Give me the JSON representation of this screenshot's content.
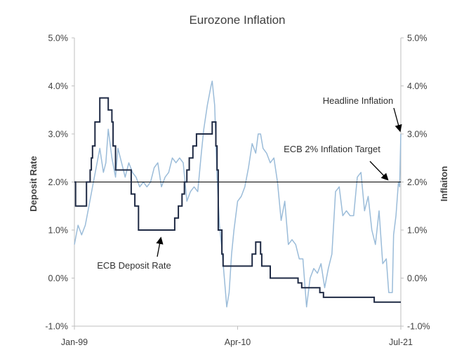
{
  "chart_data": {
    "type": "line",
    "title": "Eurozone Inflation",
    "ylabel_left": "Deposit Rate",
    "ylabel_right": "Inflaiton",
    "x_range": [
      "1999-01",
      "2021-07"
    ],
    "x_tick_labels": [
      "Jan-99",
      "Apr-10",
      "Jul-21"
    ],
    "x_tick_dates": [
      "1999-01",
      "2010-04",
      "2021-07"
    ],
    "ylim": [
      -1.0,
      5.0
    ],
    "y_tick_values": [
      -1,
      0,
      1,
      2,
      3,
      4,
      5
    ],
    "y_tick_labels": [
      "-1.0%",
      "0.0%",
      "1.0%",
      "2.0%",
      "3.0%",
      "4.0%",
      "5.0%"
    ],
    "grid": false,
    "reference_line": {
      "value": 2.0,
      "label": "ECB 2% Inflation Target",
      "color": "#000000"
    },
    "annotations": [
      {
        "text": "Headline Inflation",
        "target": "headline_inflation",
        "target_date": "2021-07",
        "target_value": 3.0
      },
      {
        "text": "ECB 2% Inflation Target",
        "target": "target_line",
        "target_date": "2020-10",
        "target_value": 2.0
      },
      {
        "text": "ECB Deposit Rate",
        "target": "deposit_rate",
        "target_date": "2005-01",
        "target_value": 0.9
      }
    ],
    "series": [
      {
        "name": "Headline Inflation",
        "id": "headline_inflation",
        "color": "#9bbcd9",
        "axis": "right",
        "points": [
          [
            "1999-01",
            0.7
          ],
          [
            "1999-04",
            1.1
          ],
          [
            "1999-07",
            0.9
          ],
          [
            "1999-10",
            1.1
          ],
          [
            "2000-01",
            1.5
          ],
          [
            "2000-04",
            1.9
          ],
          [
            "2000-07",
            2.3
          ],
          [
            "2000-10",
            2.7
          ],
          [
            "2001-01",
            2.2
          ],
          [
            "2001-03",
            2.4
          ],
          [
            "2001-05",
            3.1
          ],
          [
            "2001-08",
            2.5
          ],
          [
            "2001-11",
            2.1
          ],
          [
            "2002-01",
            2.7
          ],
          [
            "2002-04",
            2.4
          ],
          [
            "2002-07",
            2.1
          ],
          [
            "2002-10",
            2.4
          ],
          [
            "2003-01",
            2.2
          ],
          [
            "2003-04",
            2.1
          ],
          [
            "2003-07",
            1.9
          ],
          [
            "2003-10",
            2.0
          ],
          [
            "2004-01",
            1.9
          ],
          [
            "2004-04",
            2.0
          ],
          [
            "2004-07",
            2.3
          ],
          [
            "2004-10",
            2.4
          ],
          [
            "2005-01",
            1.9
          ],
          [
            "2005-04",
            2.1
          ],
          [
            "2005-07",
            2.2
          ],
          [
            "2005-10",
            2.5
          ],
          [
            "2006-01",
            2.4
          ],
          [
            "2006-04",
            2.5
          ],
          [
            "2006-07",
            2.4
          ],
          [
            "2006-10",
            1.6
          ],
          [
            "2007-01",
            1.8
          ],
          [
            "2007-04",
            1.9
          ],
          [
            "2007-07",
            1.8
          ],
          [
            "2007-10",
            2.6
          ],
          [
            "2007-12",
            3.1
          ],
          [
            "2008-03",
            3.6
          ],
          [
            "2008-06",
            4.0
          ],
          [
            "2008-07",
            4.1
          ],
          [
            "2008-09",
            3.6
          ],
          [
            "2008-11",
            2.1
          ],
          [
            "2009-01",
            1.1
          ],
          [
            "2009-03",
            0.6
          ],
          [
            "2009-05",
            0.0
          ],
          [
            "2009-07",
            -0.6
          ],
          [
            "2009-09",
            -0.3
          ],
          [
            "2009-11",
            0.5
          ],
          [
            "2010-01",
            1.0
          ],
          [
            "2010-04",
            1.6
          ],
          [
            "2010-07",
            1.7
          ],
          [
            "2010-10",
            1.9
          ],
          [
            "2011-01",
            2.3
          ],
          [
            "2011-04",
            2.8
          ],
          [
            "2011-07",
            2.6
          ],
          [
            "2011-09",
            3.0
          ],
          [
            "2011-11",
            3.0
          ],
          [
            "2012-01",
            2.7
          ],
          [
            "2012-04",
            2.6
          ],
          [
            "2012-07",
            2.4
          ],
          [
            "2012-10",
            2.5
          ],
          [
            "2013-01",
            2.0
          ],
          [
            "2013-04",
            1.2
          ],
          [
            "2013-07",
            1.6
          ],
          [
            "2013-10",
            0.7
          ],
          [
            "2014-01",
            0.8
          ],
          [
            "2014-04",
            0.7
          ],
          [
            "2014-07",
            0.4
          ],
          [
            "2014-10",
            0.4
          ],
          [
            "2015-01",
            -0.6
          ],
          [
            "2015-04",
            0.0
          ],
          [
            "2015-07",
            0.2
          ],
          [
            "2015-10",
            0.1
          ],
          [
            "2016-01",
            0.3
          ],
          [
            "2016-04",
            -0.2
          ],
          [
            "2016-07",
            0.2
          ],
          [
            "2016-10",
            0.5
          ],
          [
            "2017-01",
            1.8
          ],
          [
            "2017-04",
            1.9
          ],
          [
            "2017-07",
            1.3
          ],
          [
            "2017-10",
            1.4
          ],
          [
            "2018-01",
            1.3
          ],
          [
            "2018-04",
            1.3
          ],
          [
            "2018-07",
            2.1
          ],
          [
            "2018-10",
            2.2
          ],
          [
            "2019-01",
            1.4
          ],
          [
            "2019-04",
            1.7
          ],
          [
            "2019-07",
            1.0
          ],
          [
            "2019-10",
            0.7
          ],
          [
            "2020-01",
            1.4
          ],
          [
            "2020-04",
            0.3
          ],
          [
            "2020-07",
            0.4
          ],
          [
            "2020-09",
            -0.3
          ],
          [
            "2020-12",
            -0.3
          ],
          [
            "2021-01",
            0.9
          ],
          [
            "2021-03",
            1.3
          ],
          [
            "2021-05",
            2.0
          ],
          [
            "2021-06",
            1.9
          ],
          [
            "2021-07",
            3.0
          ]
        ]
      },
      {
        "name": "ECB Deposit Rate",
        "id": "deposit_rate",
        "color": "#1f2a44",
        "axis": "left",
        "step": true,
        "points": [
          [
            "1999-01",
            2.0
          ],
          [
            "1999-02",
            1.5
          ],
          [
            "1999-11",
            2.0
          ],
          [
            "2000-02",
            2.25
          ],
          [
            "2000-03",
            2.5
          ],
          [
            "2000-04",
            2.75
          ],
          [
            "2000-06",
            3.25
          ],
          [
            "2000-10",
            3.75
          ],
          [
            "2001-05",
            3.5
          ],
          [
            "2001-08",
            3.25
          ],
          [
            "2001-09",
            2.75
          ],
          [
            "2001-11",
            2.25
          ],
          [
            "2002-12",
            1.75
          ],
          [
            "2003-03",
            1.5
          ],
          [
            "2003-06",
            1.0
          ],
          [
            "2005-12",
            1.25
          ],
          [
            "2006-03",
            1.5
          ],
          [
            "2006-06",
            1.75
          ],
          [
            "2006-08",
            2.0
          ],
          [
            "2006-10",
            2.25
          ],
          [
            "2006-12",
            2.5
          ],
          [
            "2007-03",
            2.75
          ],
          [
            "2007-06",
            3.0
          ],
          [
            "2008-07",
            3.25
          ],
          [
            "2008-10",
            2.75
          ],
          [
            "2008-11",
            2.25
          ],
          [
            "2008-12",
            1.0
          ],
          [
            "2009-01",
            1.0
          ],
          [
            "2009-03",
            0.5
          ],
          [
            "2009-04",
            0.25
          ],
          [
            "2011-04",
            0.5
          ],
          [
            "2011-07",
            0.75
          ],
          [
            "2011-11",
            0.5
          ],
          [
            "2011-12",
            0.25
          ],
          [
            "2012-07",
            0.0
          ],
          [
            "2014-06",
            -0.1
          ],
          [
            "2014-09",
            -0.2
          ],
          [
            "2015-12",
            -0.3
          ],
          [
            "2016-03",
            -0.4
          ],
          [
            "2019-09",
            -0.5
          ],
          [
            "2021-07",
            -0.5
          ]
        ]
      }
    ]
  }
}
